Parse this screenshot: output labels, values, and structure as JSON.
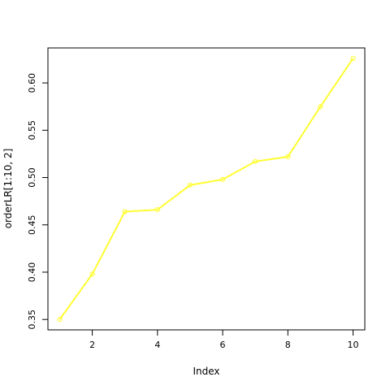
{
  "chart_data": {
    "type": "line",
    "xlabel": "Index",
    "ylabel": "orderLR[1:10, 2]",
    "x": [
      1,
      2,
      3,
      4,
      5,
      6,
      7,
      8,
      9,
      10
    ],
    "series": [
      {
        "values": [
          0.35,
          0.398,
          0.464,
          0.466,
          0.492,
          0.498,
          0.517,
          0.522,
          0.575,
          0.626
        ],
        "color": "#ffff33",
        "marker": "open-circle",
        "line": "solid"
      }
    ],
    "xlim": [
      0.64,
      10.36
    ],
    "ylim": [
      0.339,
      0.637
    ],
    "xticks": [
      2,
      4,
      6,
      8,
      10
    ],
    "yticks": [
      0.35,
      0.4,
      0.45,
      0.5,
      0.55,
      0.6
    ],
    "xtick_labels": [
      "2",
      "4",
      "6",
      "8",
      "10"
    ],
    "ytick_labels": [
      "0.35",
      "0.40",
      "0.45",
      "0.50",
      "0.55",
      "0.60"
    ],
    "grid": false,
    "legend": "none"
  }
}
